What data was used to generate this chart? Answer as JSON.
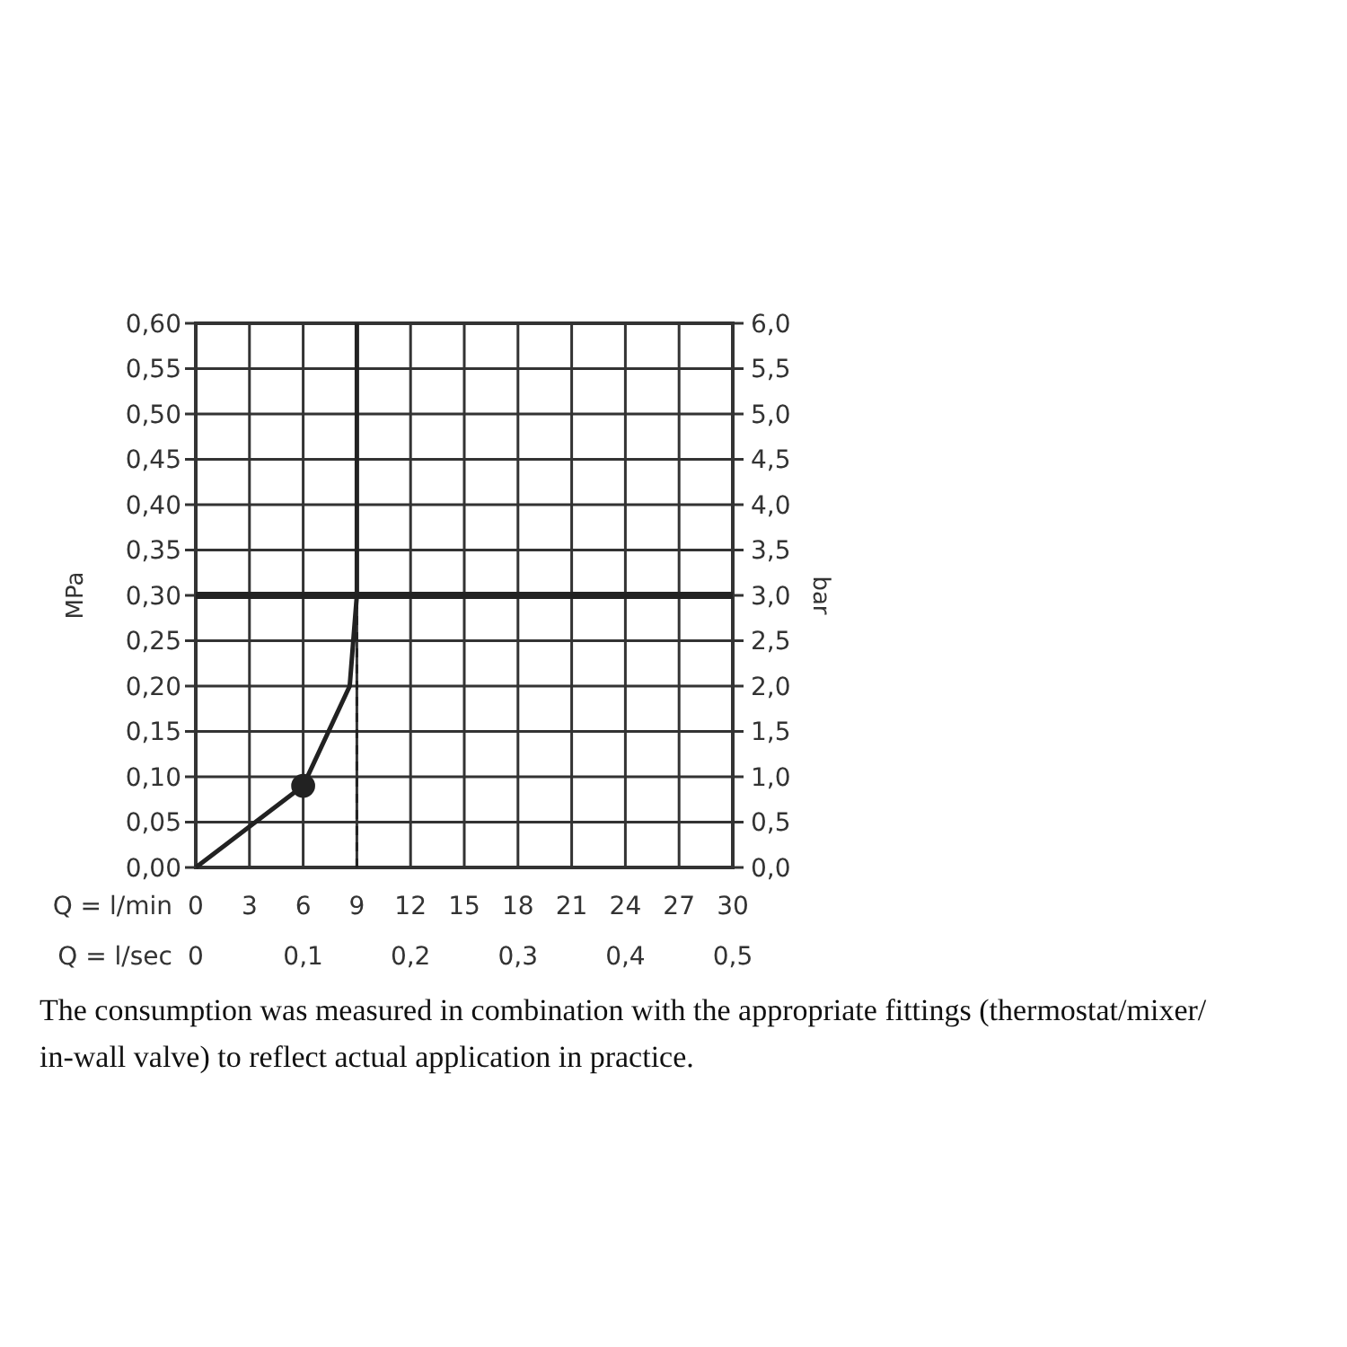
{
  "chart_data": {
    "type": "line",
    "ylabel": "MPa",
    "y2label": "bar",
    "xlabel": "Q = l/min",
    "x2label": "Q = l/sec",
    "xlim": [
      0,
      30
    ],
    "xticks": [
      0,
      3,
      6,
      9,
      12,
      15,
      18,
      21,
      24,
      27,
      30
    ],
    "x2lim": [
      0,
      0.5
    ],
    "x2ticks": [
      0,
      {
        "value": 0.1,
        "label": "0,1"
      },
      {
        "value": 0.2,
        "label": "0,2"
      },
      {
        "value": 0.3,
        "label": "0,3"
      },
      {
        "value": 0.4,
        "label": "0,4"
      },
      {
        "value": 0.5,
        "label": "0,5"
      }
    ],
    "ylim": [
      0,
      0.6
    ],
    "yticks": [
      {
        "value": 0,
        "label": "0,00"
      },
      {
        "value": 0.05,
        "label": "0,05"
      },
      {
        "value": 0.1,
        "label": "0,10"
      },
      {
        "value": 0.15,
        "label": "0,15"
      },
      {
        "value": 0.2,
        "label": "0,20"
      },
      {
        "value": 0.25,
        "label": "0,25"
      },
      {
        "value": 0.3,
        "label": "0,30"
      },
      {
        "value": 0.35,
        "label": "0,35"
      },
      {
        "value": 0.4,
        "label": "0,40"
      },
      {
        "value": 0.45,
        "label": "0,45"
      },
      {
        "value": 0.5,
        "label": "0,50"
      },
      {
        "value": 0.55,
        "label": "0,55"
      },
      {
        "value": 0.6,
        "label": "0,60"
      }
    ],
    "y2lim": [
      0,
      6
    ],
    "y2ticks": [
      {
        "value": 0,
        "label": "0,0"
      },
      {
        "value": 0.5,
        "label": "0,5"
      },
      {
        "value": 1,
        "label": "1,0"
      },
      {
        "value": 1.5,
        "label": "1,5"
      },
      {
        "value": 2,
        "label": "2,0"
      },
      {
        "value": 2.5,
        "label": "2,5"
      },
      {
        "value": 3,
        "label": "3,0"
      },
      {
        "value": 3.5,
        "label": "3,5"
      },
      {
        "value": 4,
        "label": "4,0"
      },
      {
        "value": 4.5,
        "label": "4,5"
      },
      {
        "value": 5,
        "label": "5,0"
      },
      {
        "value": 5.5,
        "label": "5,5"
      },
      {
        "value": 6,
        "label": "6,0"
      }
    ],
    "grid": true,
    "series": [
      {
        "type": "line",
        "color": "#222222",
        "x": [
          0,
          6,
          8.6,
          9,
          9
        ],
        "values": [
          0,
          0.09,
          0.2,
          0.3,
          0.6
        ],
        "line_style": "solid",
        "marker": "none"
      },
      {
        "type": "line",
        "color": "#222222",
        "x": [
          9,
          9
        ],
        "values": [
          0,
          0.3
        ],
        "line_style": "dashed",
        "marker": "none"
      },
      {
        "type": "scatter",
        "color": "#222222",
        "x": [
          6
        ],
        "values": [
          0.09
        ],
        "marker": "circle"
      }
    ],
    "ref_lines": [
      {
        "axis": "y",
        "value": 0.3,
        "color": "#222222"
      }
    ],
    "annotations": [
      "The consumption was measured in combination with the appropriate fittings (thermostat/mixer/in-wall valve) to reflect actual application in practice."
    ]
  }
}
